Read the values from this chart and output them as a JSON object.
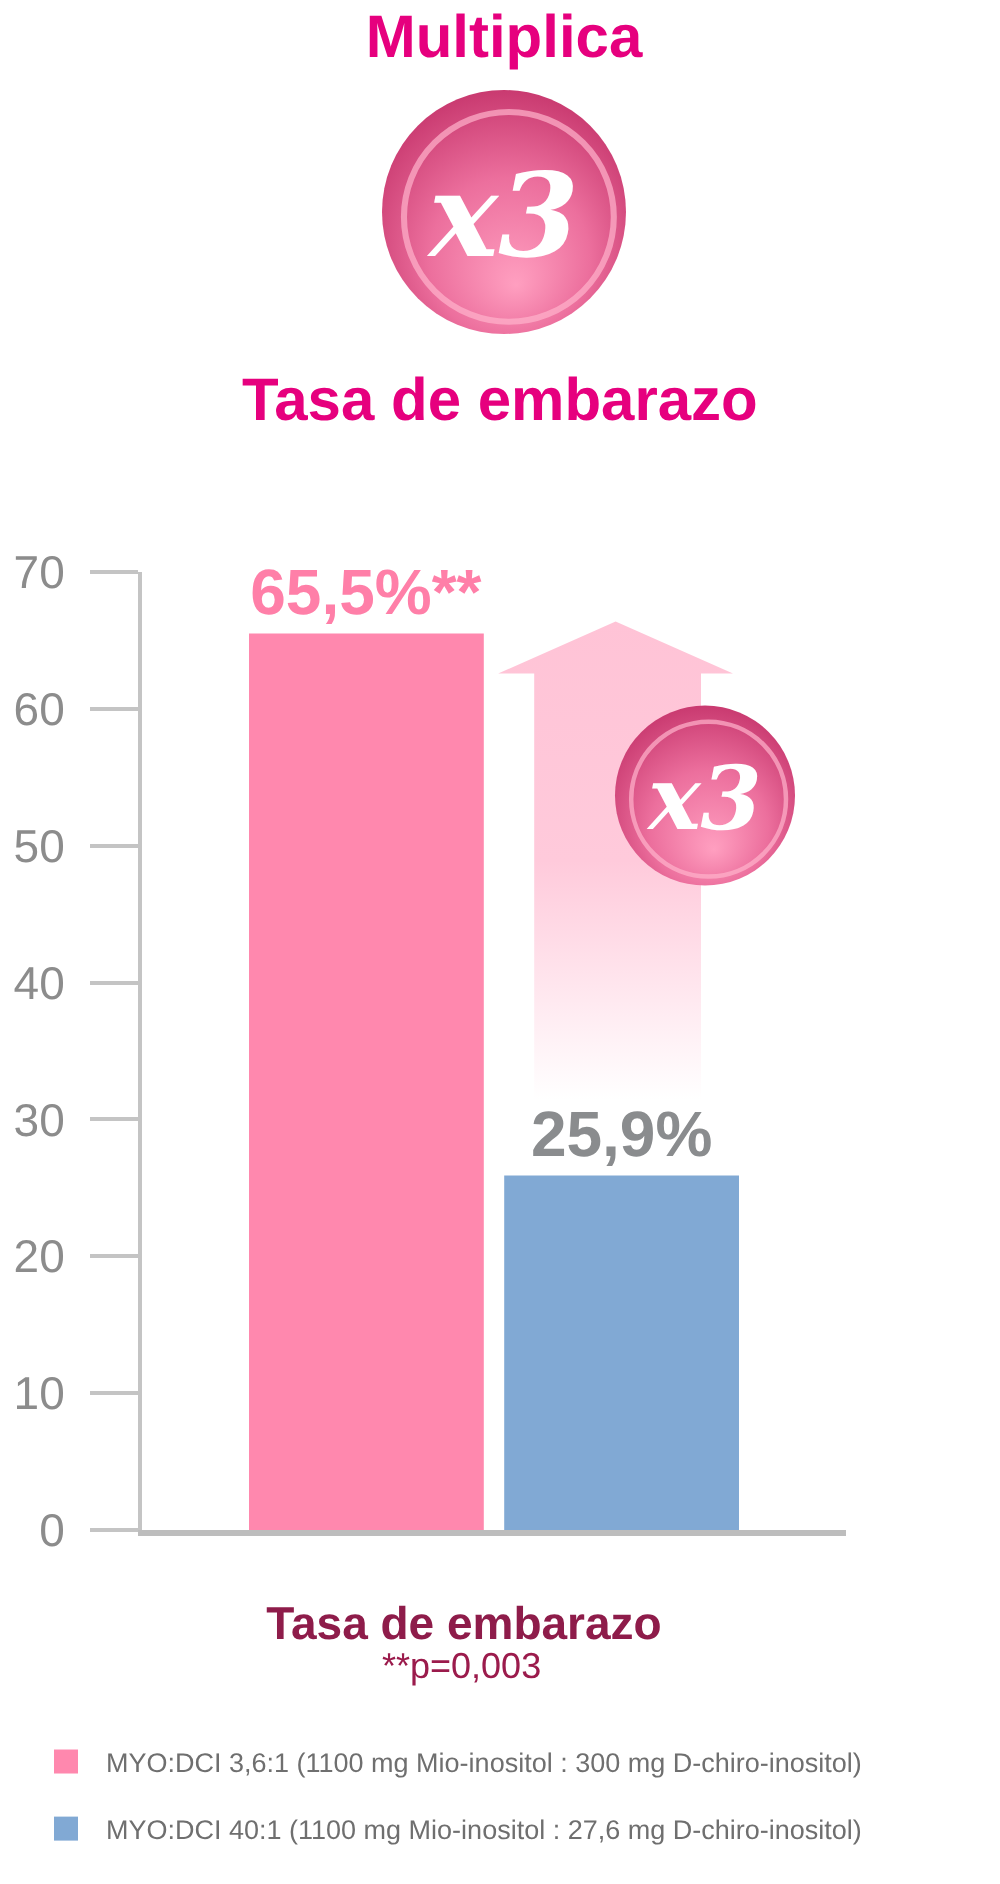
{
  "chart_data": {
    "type": "bar",
    "title": "Multiplica",
    "subtitle": "Tasa de embarazo",
    "categories": [
      "Tasa de embarazo"
    ],
    "series": [
      {
        "name": "MYO:DCI 3,6:1 (1100 mg Mio-inositol : 300 mg D-chiro-inositol)",
        "color": "#ff88ae",
        "values": [
          65.5
        ],
        "value_labels": [
          "65,5%**"
        ]
      },
      {
        "name": "MYO:DCI 40:1 (1100 mg Mio-inositol : 27,6 mg D-chiro-inositol)",
        "color": "#81a9d4",
        "values": [
          25.9
        ],
        "value_labels": [
          "25,9%"
        ]
      }
    ],
    "ylim": [
      0,
      70
    ],
    "yticks": [
      0,
      10,
      20,
      30,
      40,
      50,
      60,
      70
    ],
    "grid": false,
    "legend": "bottom",
    "annotations": [
      "x3",
      "x3",
      "**p=0,003"
    ]
  }
}
